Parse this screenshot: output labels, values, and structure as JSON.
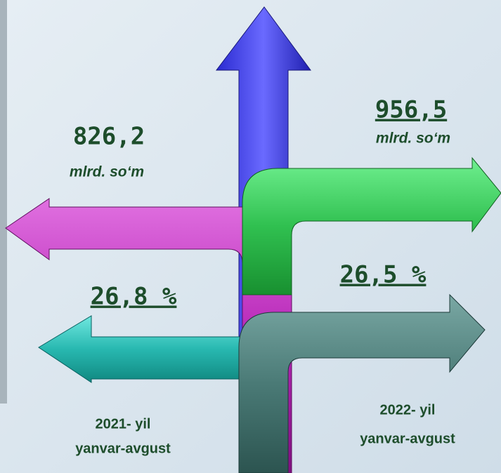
{
  "left": {
    "amount": "826,2",
    "unit": "mlrd. so‘m",
    "percent": "26,8 %",
    "period": [
      "2021- yil",
      "yanvar-avgust"
    ]
  },
  "right": {
    "amount": "956,5",
    "unit": "mlrd. so‘m",
    "percent": "26,5 %",
    "period": [
      "2022- yil",
      "yanvar-avgust"
    ]
  }
}
